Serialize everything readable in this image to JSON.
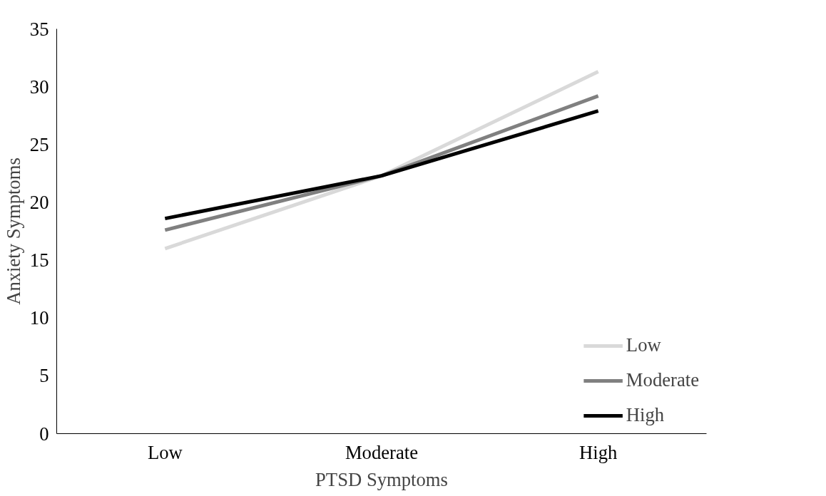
{
  "chart_data": {
    "type": "line",
    "xlabel": "PTSD Symptoms",
    "ylabel": "Anxiety Symptoms",
    "categories": [
      "Low",
      "Moderate",
      "High"
    ],
    "series": [
      {
        "name": "Low",
        "color": "#d9d9d9",
        "values": [
          16.0,
          22.3,
          31.3
        ]
      },
      {
        "name": "Moderate",
        "color": "#808080",
        "values": [
          17.6,
          22.3,
          29.2
        ]
      },
      {
        "name": "High",
        "color": "#000000",
        "values": [
          18.6,
          22.3,
          27.9
        ]
      }
    ],
    "ylim": [
      0,
      35
    ],
    "yticks": [
      0,
      5,
      10,
      15,
      20,
      25,
      30,
      35
    ],
    "grid": false,
    "legend": "bottom right",
    "marker": "none",
    "line_style": "solid"
  }
}
